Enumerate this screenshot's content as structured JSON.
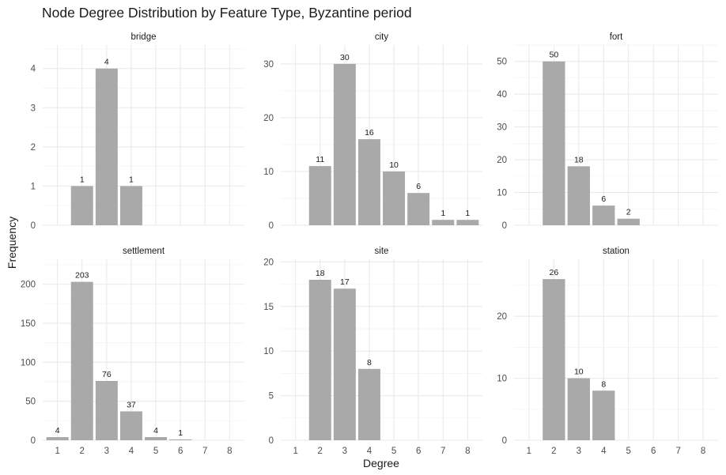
{
  "title": "Node Degree Distribution by Feature Type, Byzantine period",
  "xlabel": "Degree",
  "ylabel": "Frequency",
  "colors": {
    "bar": "#a9a9a9",
    "grid": "#e8e8e8",
    "text": "#1a1a1a"
  },
  "chart_data": [
    {
      "type": "bar",
      "panel": "bridge",
      "x_ticks": [
        "1",
        "2",
        "3",
        "4",
        "5",
        "6",
        "7",
        "8"
      ],
      "categories": [
        2,
        3,
        4
      ],
      "values": [
        1,
        4,
        1
      ],
      "ylim": [
        0,
        4.6
      ],
      "y_ticks": [
        0,
        1,
        2,
        3,
        4
      ],
      "grid": true
    },
    {
      "type": "bar",
      "panel": "city",
      "x_ticks": [
        "1",
        "2",
        "3",
        "4",
        "5",
        "6",
        "7",
        "8"
      ],
      "categories": [
        2,
        3,
        4,
        5,
        6,
        7,
        8
      ],
      "values": [
        11,
        30,
        16,
        10,
        6,
        1,
        1
      ],
      "ylim": [
        0,
        33.5
      ],
      "y_ticks": [
        0,
        10,
        20,
        30
      ],
      "grid": true
    },
    {
      "type": "bar",
      "panel": "fort",
      "x_ticks": [
        "1",
        "2",
        "3",
        "4",
        "5",
        "6",
        "7",
        "8"
      ],
      "categories": [
        2,
        3,
        4,
        5
      ],
      "values": [
        50,
        18,
        6,
        2
      ],
      "ylim": [
        0,
        55
      ],
      "y_ticks": [
        0,
        10,
        20,
        30,
        40,
        50
      ],
      "grid": true
    },
    {
      "type": "bar",
      "panel": "settlement",
      "x_ticks": [
        "1",
        "2",
        "3",
        "4",
        "5",
        "6",
        "7",
        "8"
      ],
      "categories": [
        1,
        2,
        3,
        4,
        5,
        6
      ],
      "values": [
        4,
        203,
        76,
        37,
        4,
        1
      ],
      "ylim": [
        0,
        232
      ],
      "y_ticks": [
        0,
        50,
        100,
        150,
        200
      ],
      "grid": true
    },
    {
      "type": "bar",
      "panel": "site",
      "x_ticks": [
        "1",
        "2",
        "3",
        "4",
        "5",
        "6",
        "7",
        "8"
      ],
      "categories": [
        2,
        3,
        4
      ],
      "values": [
        18,
        17,
        8
      ],
      "ylim": [
        0,
        20.3
      ],
      "y_ticks": [
        0,
        5,
        10,
        15,
        20
      ],
      "grid": true
    },
    {
      "type": "bar",
      "panel": "station",
      "x_ticks": [
        "1",
        "2",
        "3",
        "4",
        "5",
        "6",
        "7",
        "8"
      ],
      "categories": [
        2,
        3,
        4
      ],
      "values": [
        26,
        10,
        8
      ],
      "ylim": [
        0,
        29.2
      ],
      "y_ticks": [
        0,
        10,
        20
      ],
      "grid": true
    }
  ]
}
